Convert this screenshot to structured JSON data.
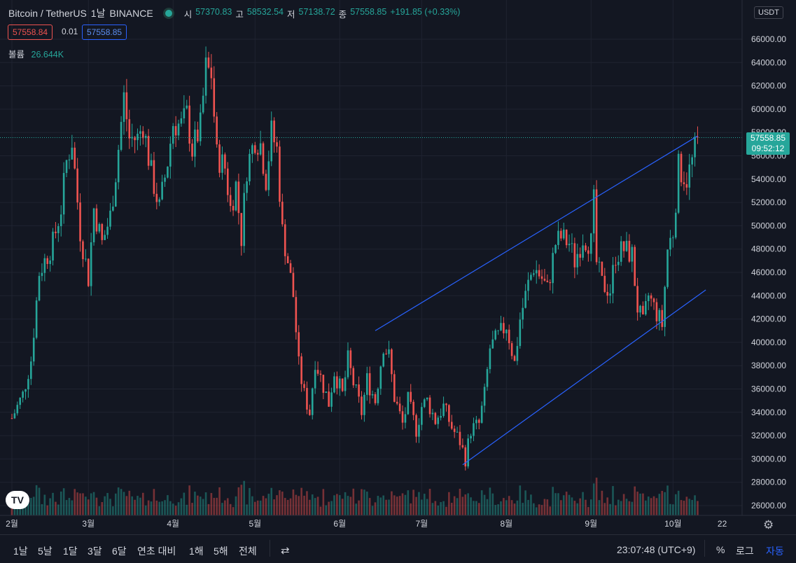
{
  "header": {
    "symbol": "Bitcoin / TetherUS",
    "interval": "1날",
    "exchange": "BINANCE",
    "open_label": "시",
    "open": "57370.83",
    "high_label": "고",
    "high": "58532.54",
    "low_label": "저",
    "low": "57138.72",
    "close_label": "종",
    "close": "57558.85",
    "change": "+191.85 (+0.33%)"
  },
  "trade": {
    "sell": "57558.84",
    "spread": "0.01",
    "buy": "57558.85"
  },
  "volume": {
    "label": "볼륨",
    "value": "26.644K"
  },
  "price_scale": {
    "currency": "USDT",
    "last_price": "57558.85",
    "countdown": "09:52:12"
  },
  "bottom": {
    "ranges": [
      "1날",
      "5날",
      "1달",
      "3달",
      "6달",
      "연초 대비",
      "1해",
      "5해",
      "전체"
    ],
    "time": "23:07:48 (UTC+9)",
    "percent": "%",
    "log": "로그",
    "auto": "자동"
  },
  "colors": {
    "background": "#131722",
    "up": "#26a69a",
    "down": "#ef5350",
    "trendline": "#2962ff",
    "grid": "#1f2330"
  },
  "icons": [
    "tradingview-logo",
    "gear-icon",
    "compare-icon",
    "market-status-dot"
  ],
  "chart_data": {
    "type": "candlestick",
    "title": "Bitcoin / TetherUS",
    "ylim": [
      25500,
      67500
    ],
    "y_ticks": [
      26000,
      28000,
      30000,
      32000,
      34000,
      36000,
      38000,
      40000,
      42000,
      44000,
      46000,
      48000,
      50000,
      52000,
      54000,
      56000,
      58000,
      60000,
      62000,
      64000,
      66000
    ],
    "x_labels": [
      "2월",
      "3월",
      "4월",
      "5월",
      "6월",
      "7월",
      "8월",
      "9월",
      "10월",
      "22"
    ],
    "x_label_days": [
      0,
      28,
      59,
      89,
      120,
      150,
      181,
      212,
      242,
      260
    ],
    "last_price": 57558.85,
    "ohlc_points": [
      {
        "d": 0,
        "p": 33500
      },
      {
        "d": 4,
        "p": 35500
      },
      {
        "d": 7,
        "p": 38500
      },
      {
        "d": 10,
        "p": 46000
      },
      {
        "d": 13,
        "p": 47500
      },
      {
        "d": 15,
        "p": 48500
      },
      {
        "d": 18,
        "p": 51500
      },
      {
        "d": 20,
        "p": 55500
      },
      {
        "d": 22,
        "p": 57300
      },
      {
        "d": 25,
        "p": 49500
      },
      {
        "d": 28,
        "p": 45500
      },
      {
        "d": 30,
        "p": 51500
      },
      {
        "d": 33,
        "p": 48500
      },
      {
        "d": 36,
        "p": 50800
      },
      {
        "d": 38,
        "p": 54500
      },
      {
        "d": 41,
        "p": 61000
      },
      {
        "d": 43,
        "p": 57500
      },
      {
        "d": 46,
        "p": 57500
      },
      {
        "d": 48,
        "p": 58700
      },
      {
        "d": 51,
        "p": 54500
      },
      {
        "d": 54,
        "p": 51500
      },
      {
        "d": 57,
        "p": 55500
      },
      {
        "d": 59,
        "p": 58800
      },
      {
        "d": 62,
        "p": 58600
      },
      {
        "d": 64,
        "p": 59500
      },
      {
        "d": 66,
        "p": 56500
      },
      {
        "d": 69,
        "p": 58500
      },
      {
        "d": 71,
        "p": 63500
      },
      {
        "d": 73,
        "p": 63000
      },
      {
        "d": 75,
        "p": 56000
      },
      {
        "d": 78,
        "p": 55000
      },
      {
        "d": 80,
        "p": 51500
      },
      {
        "d": 82,
        "p": 53500
      },
      {
        "d": 84,
        "p": 49000
      },
      {
        "d": 86,
        "p": 55000
      },
      {
        "d": 89,
        "p": 57500
      },
      {
        "d": 91,
        "p": 57000
      },
      {
        "d": 93,
        "p": 54000
      },
      {
        "d": 95,
        "p": 58000
      },
      {
        "d": 97,
        "p": 56500
      },
      {
        "d": 99,
        "p": 49500
      },
      {
        "d": 101,
        "p": 47000
      },
      {
        "d": 103,
        "p": 44000
      },
      {
        "d": 105,
        "p": 38000
      },
      {
        "d": 107,
        "p": 35500
      },
      {
        "d": 109,
        "p": 34000
      },
      {
        "d": 111,
        "p": 38500
      },
      {
        "d": 113,
        "p": 37000
      },
      {
        "d": 116,
        "p": 34800
      },
      {
        "d": 118,
        "p": 37500
      },
      {
        "d": 121,
        "p": 35500
      },
      {
        "d": 123,
        "p": 38500
      },
      {
        "d": 125,
        "p": 36500
      },
      {
        "d": 128,
        "p": 34000
      },
      {
        "d": 130,
        "p": 36800
      },
      {
        "d": 133,
        "p": 35000
      },
      {
        "d": 136,
        "p": 39800
      },
      {
        "d": 138,
        "p": 38800
      },
      {
        "d": 140,
        "p": 35300
      },
      {
        "d": 143,
        "p": 33000
      },
      {
        "d": 145,
        "p": 35000
      },
      {
        "d": 148,
        "p": 32500
      },
      {
        "d": 150,
        "p": 34500
      },
      {
        "d": 152,
        "p": 35000
      },
      {
        "d": 155,
        "p": 33300
      },
      {
        "d": 158,
        "p": 34500
      },
      {
        "d": 161,
        "p": 32700
      },
      {
        "d": 164,
        "p": 31500
      },
      {
        "d": 166,
        "p": 30000
      },
      {
        "d": 168,
        "p": 32500
      },
      {
        "d": 171,
        "p": 33000
      },
      {
        "d": 173,
        "p": 35500
      },
      {
        "d": 175,
        "p": 39500
      },
      {
        "d": 178,
        "p": 40500
      },
      {
        "d": 181,
        "p": 41500
      },
      {
        "d": 184,
        "p": 38200
      },
      {
        "d": 186,
        "p": 42000
      },
      {
        "d": 189,
        "p": 45000
      },
      {
        "d": 191,
        "p": 46500
      },
      {
        "d": 194,
        "p": 45500
      },
      {
        "d": 196,
        "p": 44500
      },
      {
        "d": 199,
        "p": 48500
      },
      {
        "d": 201,
        "p": 49000
      },
      {
        "d": 204,
        "p": 48500
      },
      {
        "d": 206,
        "p": 47000
      },
      {
        "d": 209,
        "p": 49000
      },
      {
        "d": 212,
        "p": 48500
      },
      {
        "d": 213,
        "p": 52000
      },
      {
        "d": 214,
        "p": 46800
      },
      {
        "d": 216,
        "p": 45000
      },
      {
        "d": 219,
        "p": 44500
      },
      {
        "d": 221,
        "p": 47500
      },
      {
        "d": 224,
        "p": 48000
      },
      {
        "d": 227,
        "p": 47500
      },
      {
        "d": 229,
        "p": 43000
      },
      {
        "d": 231,
        "p": 41500
      },
      {
        "d": 233,
        "p": 44000
      },
      {
        "d": 236,
        "p": 42500
      },
      {
        "d": 238,
        "p": 41500
      },
      {
        "d": 240,
        "p": 48000
      },
      {
        "d": 242,
        "p": 49500
      },
      {
        "d": 244,
        "p": 55000
      },
      {
        "d": 247,
        "p": 54000
      },
      {
        "d": 249,
        "p": 55500
      },
      {
        "d": 251,
        "p": 57500
      }
    ],
    "trend_lines": [
      {
        "name": "channel-upper",
        "points": [
          {
            "d": 133,
            "p": 41000
          },
          {
            "d": 251,
            "p": 57700
          }
        ]
      },
      {
        "name": "channel-lower",
        "points": [
          {
            "d": 165,
            "p": 29500
          },
          {
            "d": 254,
            "p": 44500
          }
        ]
      },
      {
        "name": "channel-mid-upper",
        "points": [
          {
            "d": 212,
            "p": 52800
          },
          {
            "d": 212,
            "p": 52800
          }
        ]
      }
    ]
  }
}
